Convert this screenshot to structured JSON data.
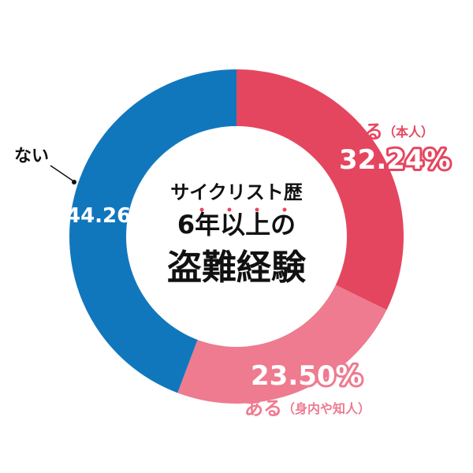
{
  "chart_data": {
    "type": "pie",
    "subtype": "donut",
    "center_text": [
      "サイクリスト歴",
      "6年以上の",
      "盗難経験"
    ],
    "slices": [
      {
        "label": "ある",
        "sub": "（本人）",
        "value": 32.24,
        "value_text": "32.24%",
        "color": "#e5465f"
      },
      {
        "label": "ある",
        "sub": "（身内や知人）",
        "value": 23.5,
        "value_text": "23.50%",
        "color": "#ee7b8f"
      },
      {
        "label": "ない",
        "sub": "",
        "value": 44.26,
        "value_text": "44.26%",
        "color": "#1177bd"
      }
    ]
  }
}
